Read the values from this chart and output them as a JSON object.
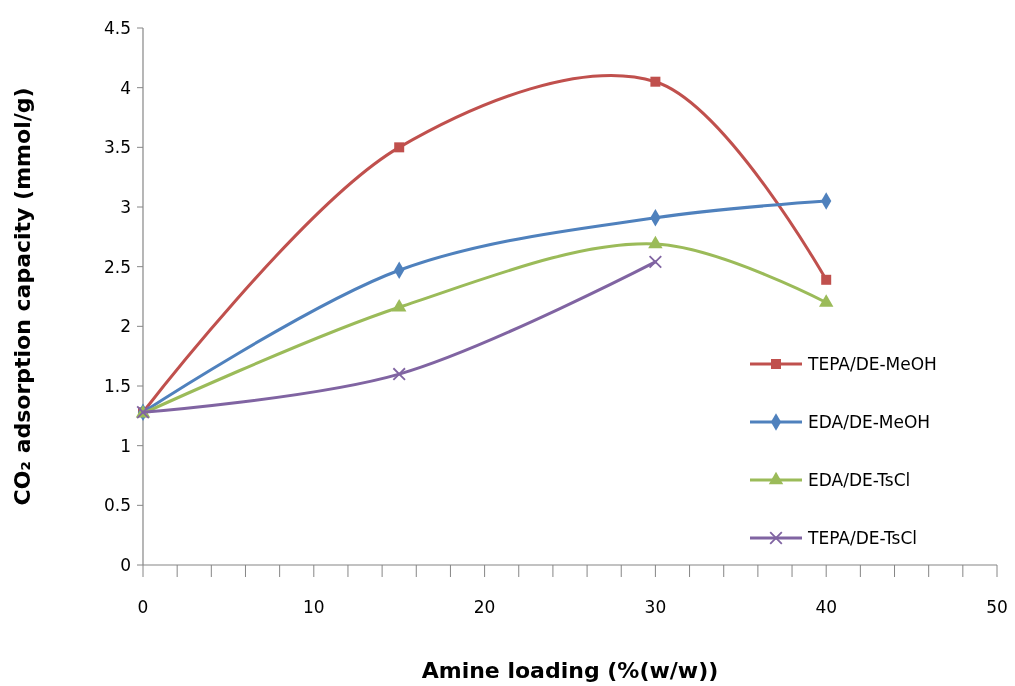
{
  "chart_data": {
    "type": "line",
    "xlabel": "Amine loading (%(w/w))",
    "ylabel": "CO₂ adsorption capacity (mmol/g)",
    "xlim": [
      0,
      50
    ],
    "xticks": [
      0,
      {
        "value": 2,
        "label": null
      },
      {
        "value": 4,
        "label": null
      },
      {
        "value": 6,
        "label": null
      },
      {
        "value": 8,
        "label": null
      },
      10,
      {
        "value": 12,
        "label": null
      },
      {
        "value": 14,
        "label": null
      },
      {
        "value": 16,
        "label": null
      },
      {
        "value": 18,
        "label": null
      },
      20,
      {
        "value": 22,
        "label": null
      },
      {
        "value": 24,
        "label": null
      },
      {
        "value": 26,
        "label": null
      },
      {
        "value": 28,
        "label": null
      },
      30,
      {
        "value": 32,
        "label": null
      },
      {
        "value": 34,
        "label": null
      },
      {
        "value": 36,
        "label": null
      },
      {
        "value": 38,
        "label": null
      },
      40,
      {
        "value": 42,
        "label": null
      },
      {
        "value": 44,
        "label": null
      },
      {
        "value": 46,
        "label": null
      },
      {
        "value": 48,
        "label": null
      },
      50
    ],
    "ylim": [
      0,
      4.5
    ],
    "yticks": [
      0,
      0.5,
      1,
      1.5,
      2,
      2.5,
      3,
      3.5,
      4,
      4.5
    ],
    "grid": false,
    "legend": "right",
    "series": [
      {
        "name": "TEPA/DE-MeOH",
        "color": "#c0504d",
        "marker": "square",
        "x": [
          0,
          15,
          30,
          40
        ],
        "values": [
          1.28,
          3.5,
          4.05,
          2.39
        ]
      },
      {
        "name": "EDA/DE-MeOH",
        "color": "#4f81bd",
        "marker": "diamond",
        "x": [
          0,
          15,
          30,
          40
        ],
        "values": [
          1.28,
          2.47,
          2.91,
          3.05
        ]
      },
      {
        "name": "EDA/DE-TsCl",
        "color": "#9bbb59",
        "marker": "triangle",
        "x": [
          0,
          15,
          30,
          40
        ],
        "values": [
          1.27,
          2.16,
          2.69,
          2.2
        ]
      },
      {
        "name": "TEPA/DE-TsCl",
        "color": "#8064a2",
        "marker": "cross",
        "x": [
          0,
          15,
          30
        ],
        "values": [
          1.28,
          1.6,
          2.54
        ]
      }
    ]
  }
}
